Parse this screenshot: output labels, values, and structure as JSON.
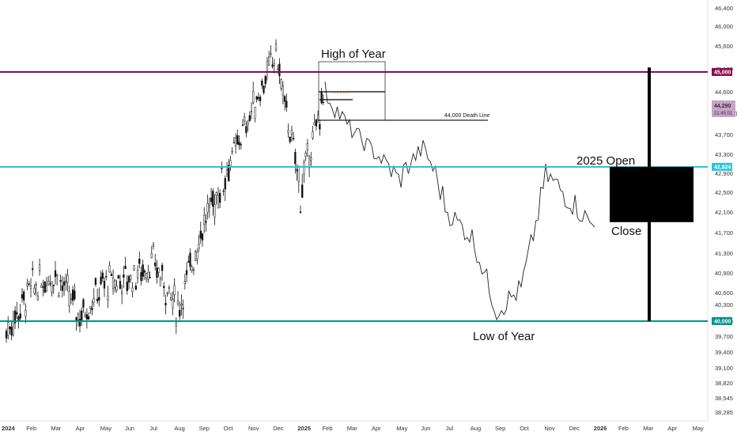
{
  "colors": {
    "background": "#ffffff",
    "resistance": "#880e4f",
    "open_line": "#26c6da",
    "support": "#009688",
    "price_line": "#222222",
    "candle": "#111111",
    "price_badge": "#c8a2c8"
  },
  "chart_data": {
    "type": "line",
    "ylim": [
      38250,
      46400
    ],
    "y_ticks": [
      "46,400",
      "46,000",
      "45,600",
      "45,100",
      "44,600",
      "44,290",
      "21:45:01",
      "43,700",
      "43,300",
      "42,900",
      "42,500",
      "42,100",
      "41,700",
      "41,300",
      "40,900",
      "40,600",
      "40,300",
      "40,000",
      "39,700",
      "39,400",
      "39,100",
      "38,820",
      "38,545",
      "38,285"
    ],
    "x_ticks": [
      "2024",
      "Feb",
      "Mar",
      "Apr",
      "May",
      "Jun",
      "Jul",
      "Aug",
      "Sep",
      "Oct",
      "Nov",
      "Dec",
      "2025",
      "Feb",
      "Mar",
      "Apr",
      "May",
      "Jun",
      "Jul",
      "Aug",
      "Sep",
      "Oct",
      "Nov",
      "Dec",
      "2026",
      "Feb",
      "Mar",
      "Apr",
      "May"
    ],
    "levels": [
      {
        "value": 45000,
        "label": "45,000",
        "color": "#880e4f"
      },
      {
        "value": 42824,
        "label": "42,824",
        "color": "#26c6da"
      },
      {
        "value": 40000,
        "label": "40,000",
        "color": "#009688"
      }
    ],
    "current_price": {
      "value": 44290,
      "label": "44,290",
      "timer": "21:45:01"
    },
    "death_line": {
      "value": 43950,
      "label": "44,000 Death Line",
      "from": "2025-02-01",
      "to": "2025-08-01"
    },
    "annotations": [
      "High of Year",
      "2025 Open",
      "Close",
      "Low of Year"
    ],
    "year_candle": {
      "period": "2025",
      "open": 42824,
      "high": 45100,
      "low": 40000,
      "close": 41900
    },
    "series": [
      {
        "style": "candles",
        "x": [
          "2024-01",
          "2024-02",
          "2024-03",
          "2024-04",
          "2024-05",
          "2024-06",
          "2024-07",
          "2024-08",
          "2024-09",
          "2024-10",
          "2024-11",
          "2024-12",
          "2025-01",
          "2025-02"
        ],
        "values": [
          39800,
          40600,
          40900,
          40100,
          40700,
          40800,
          41100,
          40200,
          41800,
          42800,
          44200,
          45400,
          42400,
          44600
        ]
      },
      {
        "style": "line",
        "x": [
          "2025-03",
          "2025-04",
          "2025-05",
          "2025-06",
          "2025-07",
          "2025-08",
          "2025-09",
          "2025-10",
          "2025-11",
          "2025-12",
          "2026-01"
        ],
        "values": [
          43800,
          43200,
          42600,
          43300,
          42100,
          41600,
          40200,
          40600,
          42700,
          42300,
          41800
        ]
      }
    ]
  }
}
